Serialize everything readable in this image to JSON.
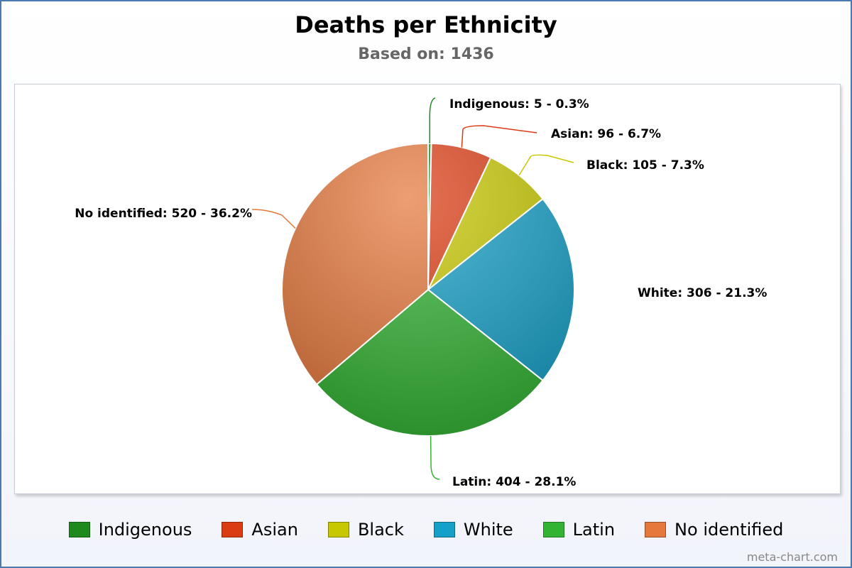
{
  "chart_data": {
    "type": "pie",
    "title": "Deaths per Ethnicity",
    "subtitle": "Based on: 1436",
    "slices": [
      {
        "name": "Indigenous",
        "value": 5,
        "percent": "0.3%",
        "label": "Indigenous: 5 - 0.3%",
        "color": "#1e8a1e"
      },
      {
        "name": "Asian",
        "value": 96,
        "percent": "6.7%",
        "label": "Asian: 96 - 6.7%",
        "color": "#dc3c14"
      },
      {
        "name": "Black",
        "value": 105,
        "percent": "7.3%",
        "label": "Black: 105 - 7.3%",
        "color": "#c8c800"
      },
      {
        "name": "White",
        "value": 306,
        "percent": "21.3%",
        "label": "White: 306 - 21.3%",
        "color": "#14a0c8"
      },
      {
        "name": "Latin",
        "value": 404,
        "percent": "28.1%",
        "label": "Latin: 404 - 28.1%",
        "color": "#32b432"
      },
      {
        "name": "No identified",
        "value": 520,
        "percent": "36.2%",
        "label": "No identified: 520 - 36.2%",
        "color": "#e6783c"
      }
    ],
    "legend_position": "bottom"
  },
  "legend": {
    "items": [
      {
        "label": "Indigenous",
        "color": "#1e8a1e"
      },
      {
        "label": "Asian",
        "color": "#dc3c14"
      },
      {
        "label": "Black",
        "color": "#c8c800"
      },
      {
        "label": "White",
        "color": "#14a0c8"
      },
      {
        "label": "Latin",
        "color": "#32b432"
      },
      {
        "label": "No identified",
        "color": "#e6783c"
      }
    ]
  },
  "credit": "meta-chart.com"
}
